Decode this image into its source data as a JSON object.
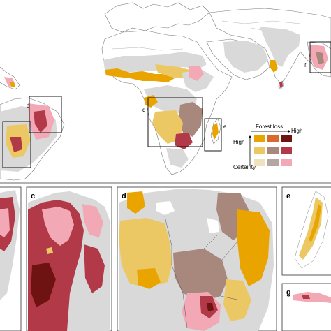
{
  "panel_labels": {
    "c_top": "c",
    "d_top": "d",
    "e_top": "e",
    "f_top": "f",
    "c_inset": "c",
    "d_inset": "d",
    "e_inset": "e",
    "g_inset": "g"
  },
  "legend": {
    "forest_loss_label": "Forest loss",
    "high_x_label": "High",
    "high_y_label": "High",
    "certainty_label": "Certainty",
    "colors": [
      [
        "#e9a400",
        "#d96a2c",
        "#6e1212"
      ],
      [
        "#ecc864",
        "#a8877c",
        "#b23a48"
      ],
      [
        "#efe2bd",
        "#b4a6a2",
        "#f2a9b5"
      ]
    ]
  },
  "class_colors": {
    "land": "#ffffff",
    "no_data": "#d9d9d9",
    "yellow_high": "#e9a400",
    "yellow_mid": "#ecc864",
    "brown_mid": "#a8877c",
    "red_mid": "#b23a48",
    "pink_low": "#f2a9b5",
    "dark_red": "#6e1212"
  }
}
